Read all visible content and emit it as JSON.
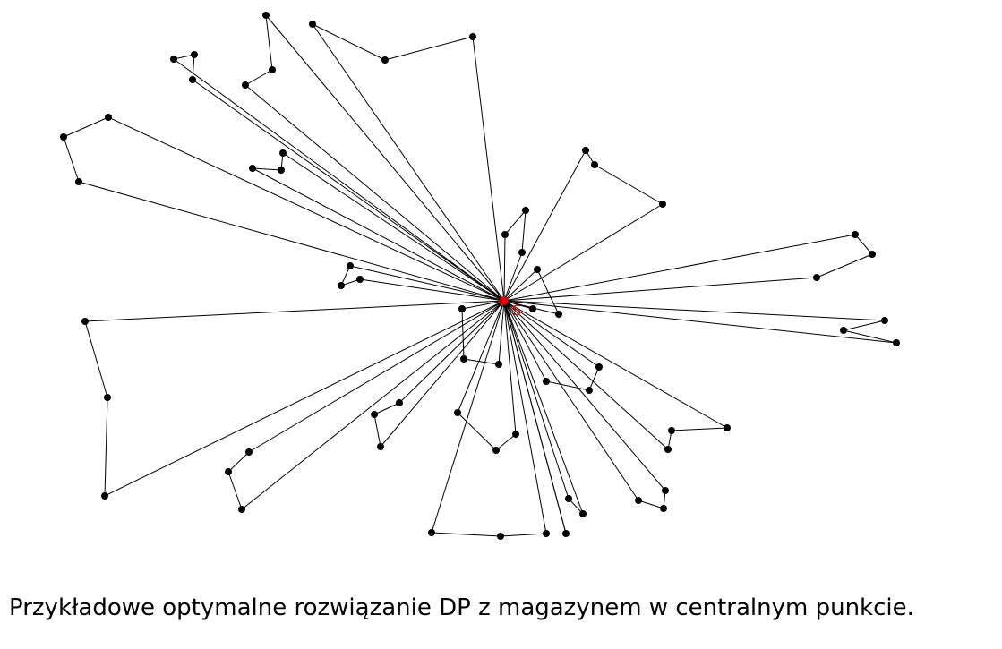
{
  "depot": {
    "label": "S",
    "color": "#e00000"
  },
  "colors": {
    "node": "#000000",
    "edge": "#000000"
  },
  "caption": "Przykładowe optymalne rozwiązanie DP z magazynem w centralnym punkcie."
}
